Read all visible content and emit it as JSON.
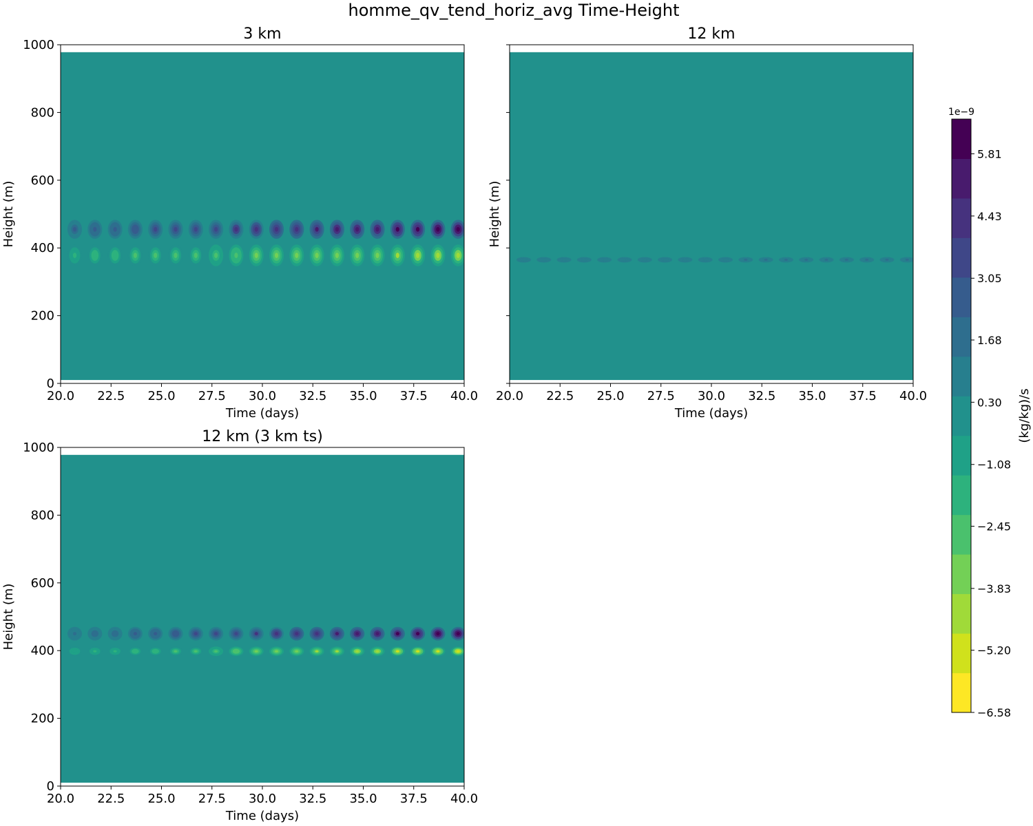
{
  "figure": {
    "title": "homme_qv_tend_horiz_avg Time-Height"
  },
  "chart_data": [
    {
      "type": "heatmap",
      "title": "3 km",
      "xlabel": "Time (days)",
      "ylabel": "Height (m)",
      "xlim": [
        20,
        40
      ],
      "ylim": [
        0,
        1000
      ],
      "xticks": [
        "20.0",
        "22.5",
        "25.0",
        "27.5",
        "30.0",
        "32.5",
        "35.0",
        "37.5",
        "40.0"
      ],
      "yticks": [
        "0",
        "200",
        "400",
        "600",
        "800",
        "1000"
      ],
      "show_ytick_labels": true,
      "data_extent_height": [
        10,
        978
      ],
      "background_value": 0.3,
      "features": {
        "period_days": 1.0,
        "first_day": 20.7,
        "positive_band": {
          "height": 455,
          "half_height": 28,
          "amp_start": 2.2,
          "amp_end": 6.6
        },
        "negative_band": {
          "height": 378,
          "half_height": 32,
          "amp_start": -1.8,
          "amp_end": -4.5
        }
      }
    },
    {
      "type": "heatmap",
      "title": "12 km",
      "xlabel": "Time (days)",
      "ylabel": "Height (m)",
      "xlim": [
        20,
        40
      ],
      "ylim": [
        0,
        1000
      ],
      "xticks": [
        "20.0",
        "22.5",
        "25.0",
        "27.5",
        "30.0",
        "32.5",
        "35.0",
        "37.5",
        "40.0"
      ],
      "yticks": [
        "0",
        "200",
        "400",
        "600",
        "800",
        "1000"
      ],
      "show_ytick_labels": false,
      "data_extent_height": [
        10,
        978
      ],
      "background_value": 0.3,
      "features": {
        "period_days": 1.0,
        "first_day": 20.7,
        "positive_band": {
          "height": 365,
          "half_height": 8,
          "amp_start": 1.0,
          "amp_end": 1.6
        },
        "negative_band": null
      }
    },
    {
      "type": "heatmap",
      "title": "12 km (3 km ts)",
      "xlabel": "Time (days)",
      "ylabel": "Height (m)",
      "xlim": [
        20,
        40
      ],
      "ylim": [
        0,
        1000
      ],
      "xticks": [
        "20.0",
        "22.5",
        "25.0",
        "27.5",
        "30.0",
        "32.5",
        "35.0",
        "37.5",
        "40.0"
      ],
      "yticks": [
        "0",
        "200",
        "400",
        "600",
        "800",
        "1000"
      ],
      "show_ytick_labels": true,
      "data_extent_height": [
        10,
        978
      ],
      "background_value": 0.3,
      "features": {
        "period_days": 1.0,
        "first_day": 20.7,
        "positive_band": {
          "height": 450,
          "half_height": 20,
          "amp_start": 1.6,
          "amp_end": 6.6
        },
        "negative_band": {
          "height": 398,
          "half_height": 14,
          "amp_start": -1.3,
          "amp_end": -5.5
        }
      }
    }
  ],
  "colorbar": {
    "label": "(kg/kg)/s",
    "exponent": "1e−9",
    "vmin": -6.58,
    "vmax": 6.58,
    "levels": 19,
    "tick_values": [
      5.81,
      4.43,
      3.05,
      1.68,
      0.3,
      -1.08,
      -2.45,
      -3.83,
      -5.2,
      -6.58
    ],
    "tick_labels": [
      "5.81",
      "4.43",
      "3.05",
      "1.68",
      "0.30",
      "−1.08",
      "−2.45",
      "−3.83",
      "−5.20",
      "−6.58"
    ],
    "colormap": "viridis_r",
    "colors": [
      "#fde725",
      "#d0e11c",
      "#a0da39",
      "#73d056",
      "#4ac16d",
      "#2db27d",
      "#1fa187",
      "#21918c",
      "#277f8e",
      "#2e6e8e",
      "#365c8d",
      "#3f4788",
      "#46327e",
      "#481b6d",
      "#440154"
    ]
  }
}
